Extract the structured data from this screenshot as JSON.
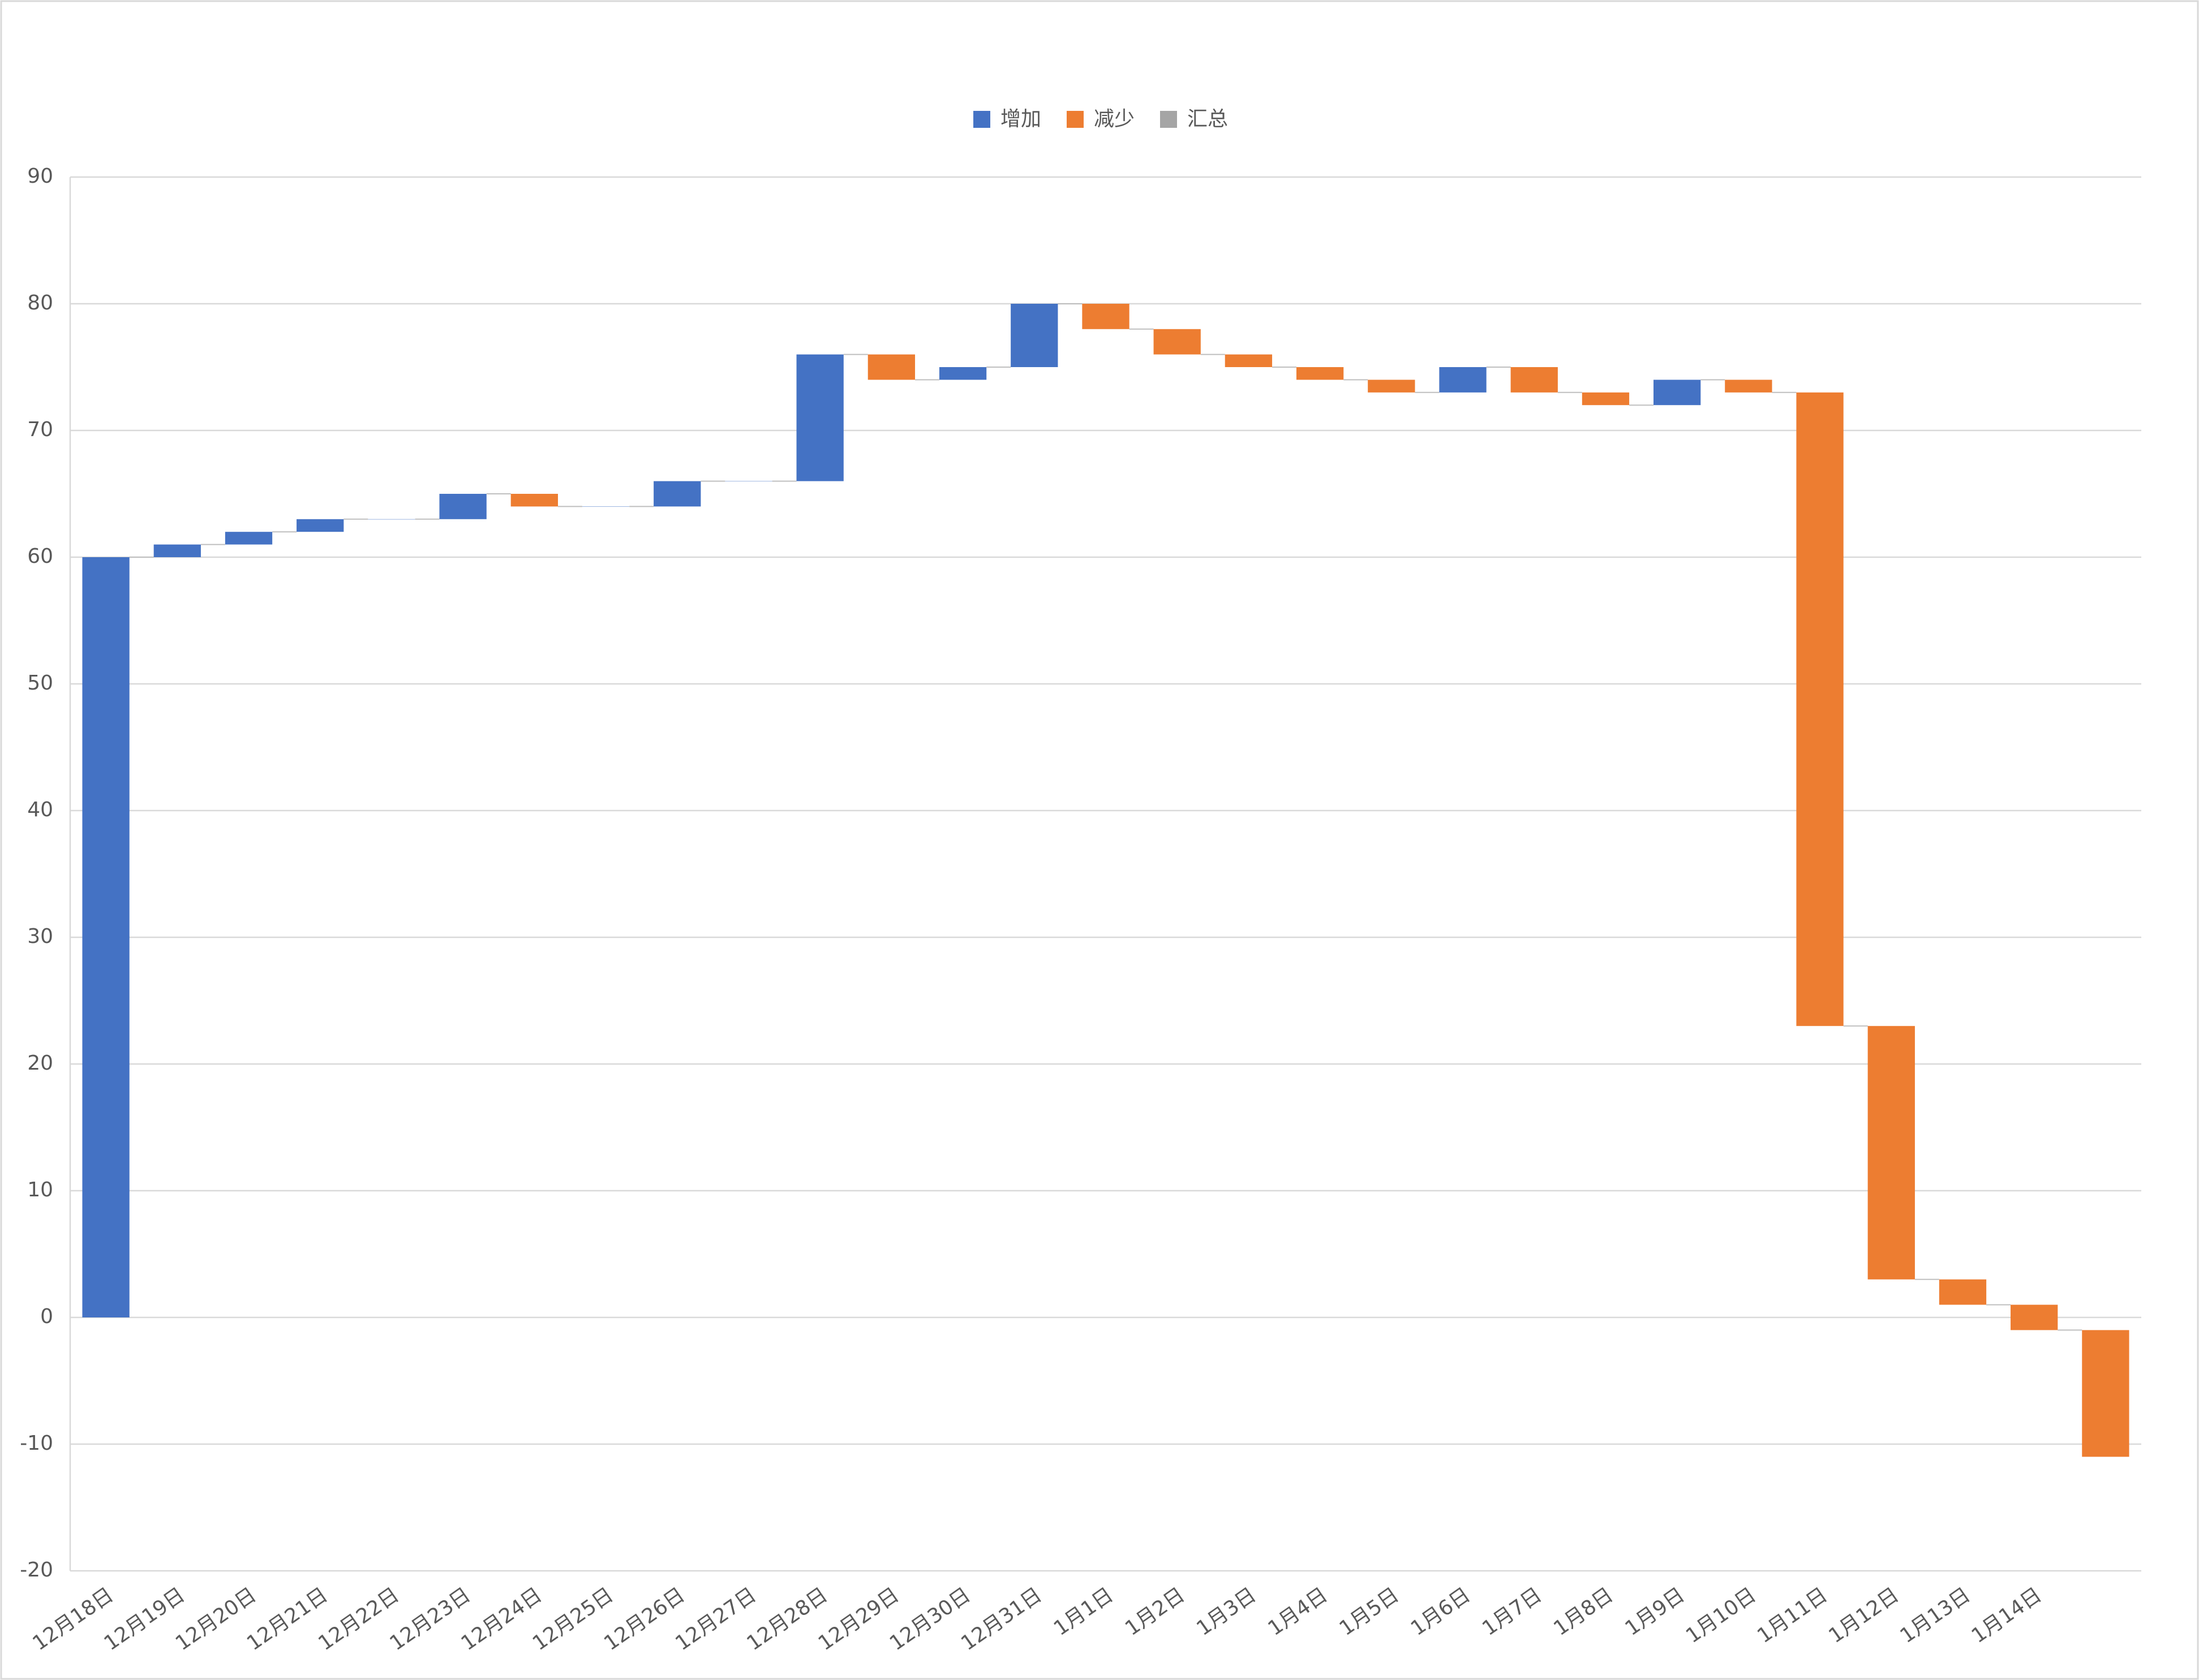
{
  "chart_data": {
    "type": "waterfall",
    "categories": [
      "12月18日",
      "12月19日",
      "12月20日",
      "12月21日",
      "12月22日",
      "12月23日",
      "12月24日",
      "12月25日",
      "12月26日",
      "12月27日",
      "12月28日",
      "12月29日",
      "12月30日",
      "12月31日",
      "1月1日",
      "1月2日",
      "1月3日",
      "1月4日",
      "1月5日",
      "1月6日",
      "1月7日",
      "1月8日",
      "1月9日",
      "1月10日",
      "1月11日",
      "1月12日",
      "1月13日",
      "1月14日",
      null
    ],
    "values": [
      60,
      1,
      1,
      1,
      0,
      2,
      -1,
      0,
      2,
      0,
      10,
      -2,
      1,
      5,
      -2,
      -2,
      -1,
      -1,
      -1,
      2,
      -2,
      -1,
      2,
      -1,
      -50,
      -20,
      -2,
      -2,
      -10
    ],
    "legend": [
      {
        "name": "增加",
        "color": "#4472c4"
      },
      {
        "name": "减少",
        "color": "#ed7d31"
      },
      {
        "name": "汇总",
        "color": "#a5a5a5"
      }
    ],
    "ylim": [
      -20,
      90
    ],
    "yticks": [
      -20,
      -10,
      0,
      10,
      20,
      30,
      40,
      50,
      60,
      70,
      80,
      90
    ],
    "grid": true
  }
}
